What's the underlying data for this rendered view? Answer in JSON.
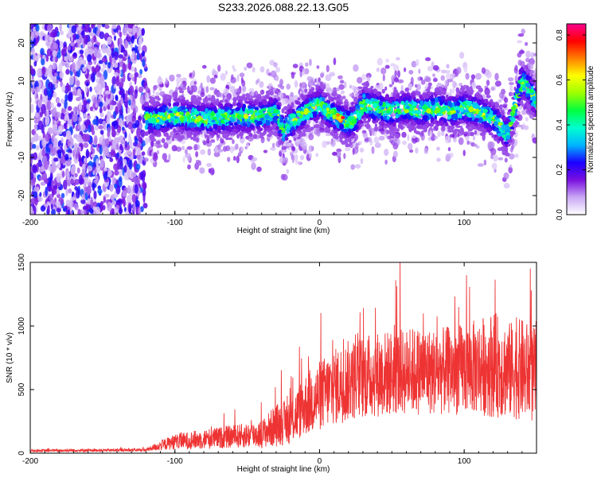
{
  "title": "S233.2026.088.22.13.G05",
  "chart_data": [
    {
      "type": "heatmap",
      "title": "S233.2026.088.22.13.G05",
      "xlabel": "Height of straight line (km)",
      "ylabel": "Frequency (Hz)",
      "xlim": [
        -200,
        150
      ],
      "ylim": [
        -25,
        25
      ],
      "xticks": [
        -200,
        -100,
        0,
        100
      ],
      "xtick_labels": [
        "-200",
        "-100",
        "0",
        "100"
      ],
      "yticks": [
        -20,
        -10,
        0,
        10,
        20
      ],
      "ytick_labels": [
        "-20",
        "-10",
        "0",
        "10",
        "20"
      ],
      "colorbar": {
        "label": "Normalized spectral amplitude",
        "range": [
          0.0,
          0.85
        ],
        "ticks": [
          0.0,
          0.2,
          0.4,
          0.6,
          0.8
        ],
        "tick_labels": [
          "0.0",
          "0.2",
          "0.4",
          "0.6",
          "0.8"
        ],
        "colormap": [
          "#ffffff",
          "#c9a8f5",
          "#7a10e0",
          "#1a00ff",
          "#00b4ff",
          "#00ffd0",
          "#00ff40",
          "#9bff00",
          "#ffff00",
          "#ff8000",
          "#ff0000",
          "#ff0090"
        ]
      },
      "ridge": {
        "x": [
          -115,
          -100,
          -80,
          -60,
          -40,
          -30,
          -25,
          -20,
          -10,
          0,
          5,
          10,
          15,
          20,
          25,
          30,
          40,
          50,
          60,
          70,
          80,
          90,
          100,
          110,
          120,
          125,
          130,
          135,
          140,
          145,
          150
        ],
        "y": [
          0,
          1,
          0,
          0.5,
          1,
          2,
          -3,
          -1,
          2,
          4,
          2,
          1,
          0,
          -1,
          0,
          4,
          3,
          2,
          3,
          2,
          3,
          2,
          3,
          2,
          0,
          -2,
          -4,
          3,
          10,
          8,
          4
        ]
      }
    },
    {
      "type": "line",
      "xlabel": "Height of straight line (km)",
      "ylabel": "SNR (10 * v/v)",
      "xlim": [
        -200,
        150
      ],
      "ylim": [
        0,
        1500
      ],
      "xticks": [
        -200,
        -100,
        0,
        100
      ],
      "xtick_labels": [
        "-200",
        "-100",
        "0",
        "100"
      ],
      "yticks": [
        0,
        500,
        1000,
        1500
      ],
      "ytick_labels": [
        "0",
        "500",
        "1000",
        "1500"
      ],
      "color": "#ee3333",
      "envelope": {
        "x": [
          -200,
          -120,
          -110,
          -100,
          -80,
          -60,
          -40,
          -30,
          -20,
          -10,
          0,
          10,
          20,
          30,
          40,
          50,
          60,
          70,
          80,
          90,
          100,
          110,
          120,
          130,
          140,
          150
        ],
        "mean": [
          20,
          25,
          60,
          90,
          110,
          130,
          150,
          220,
          250,
          380,
          450,
          520,
          570,
          600,
          620,
          630,
          640,
          650,
          640,
          650,
          660,
          680,
          700,
          650,
          660,
          600
        ],
        "spread": [
          10,
          12,
          40,
          60,
          80,
          90,
          110,
          170,
          180,
          250,
          280,
          300,
          320,
          330,
          340,
          340,
          340,
          350,
          340,
          350,
          360,
          380,
          420,
          380,
          400,
          380
        ]
      }
    }
  ]
}
